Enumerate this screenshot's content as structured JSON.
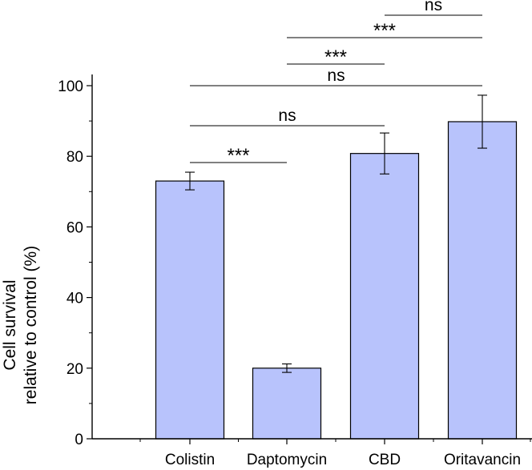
{
  "chart_data": {
    "type": "bar",
    "categories": [
      "Colistin",
      "Daptomycin",
      "CBD",
      "Oritavancin"
    ],
    "values": [
      73,
      20,
      80.8,
      89.8
    ],
    "error": [
      2.5,
      1.2,
      5.8,
      7.5
    ],
    "ylabel_lines": [
      "Cell survival",
      "relative to control (%)"
    ],
    "xlabel": "",
    "ylim": [
      0,
      100
    ],
    "yticks": [
      0,
      20,
      40,
      60,
      80,
      100
    ],
    "grid": false,
    "bar_color": "#b8c3fc",
    "bar_edge_color": "#000000",
    "significance": [
      {
        "from": 0,
        "to": 1,
        "label": "***"
      },
      {
        "from": 0,
        "to": 2,
        "label": "ns"
      },
      {
        "from": 0,
        "to": 3,
        "label": "ns"
      },
      {
        "from": 1,
        "to": 2,
        "label": "***"
      },
      {
        "from": 1,
        "to": 3,
        "label": "***"
      },
      {
        "from": 2,
        "to": 3,
        "label": "ns"
      }
    ]
  }
}
